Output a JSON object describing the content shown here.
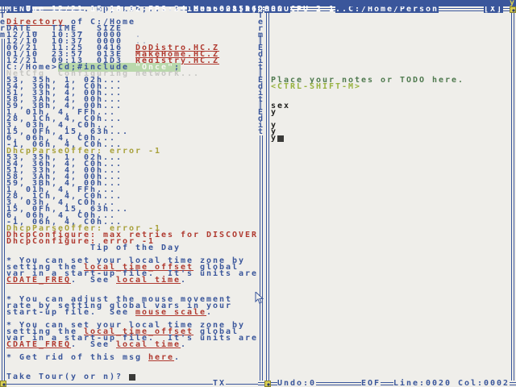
{
  "colors": {
    "accent_blue": "#3a569b",
    "link_red": "#b03a30",
    "error_red": "#b03a30",
    "warn_olive": "#a8a13c",
    "note_green": "#4f7a4f",
    "hint_green": "#97b23f",
    "cmd_highlight": "#b9d8ab",
    "handle_yellow": "#d9cf52"
  },
  "status_bar": {
    "text": "Tue 12/21 15:18:02 FPS:24 Mem:0015D6D800 CPU 2 1",
    "corner_glyph": "y"
  },
  "left_window": {
    "menu_label": "MENU",
    "title": ".Tmp;.Lsh;....T",
    "title_number": "16956628",
    "close_label": "[X]",
    "border_letters": [
      "T",
      "e",
      "r",
      "m"
    ],
    "status": {
      "tx_label": "TX"
    },
    "content_lines": [
      [],
      [
        [
          "lk",
          "Directory"
        ],
        [
          "b",
          " of C:/Home"
        ]
      ],
      [
        [
          "b",
          "DATE_  TIME_  SIZE"
        ]
      ],
      [
        [
          "b",
          "12/10  10:37  0000  "
        ],
        [
          "dim",
          "."
        ]
      ],
      [
        [
          "b",
          "12/10  10:37  0000  "
        ],
        [
          "dim",
          ".."
        ]
      ],
      [
        [
          "b",
          "06/21  11:25  0416  "
        ],
        [
          "lk",
          "DoDistro.HC.Z"
        ]
      ],
      [
        [
          "b",
          "01/10  23:57  013E  "
        ],
        [
          "lk",
          "MakeHome.HC.Z"
        ]
      ],
      [
        [
          "b",
          "12/21  09:13  01D3  "
        ],
        [
          "lk",
          "Registry.HC.Z"
        ]
      ],
      [
        [
          "b",
          "C:/Home>"
        ],
        [
          "cmd",
          "Cd;#include "
        ],
        [
          "str",
          "\"Once\""
        ],
        [
          "cmd",
          ";"
        ]
      ],
      [
        [
          "f",
          "NetCfg  Configuring network..."
        ]
      ],
      [
        [
          "b",
          "53, 35h, 1, 02h..."
        ]
      ],
      [
        [
          "b",
          "54, 36h, 4, C0h..."
        ]
      ],
      [
        [
          "b",
          "51, 33h, 4, 00h..."
        ]
      ],
      [
        [
          "b",
          "58, 3Ah, 4, 00h..."
        ]
      ],
      [
        [
          "b",
          "59, 3Bh, 4, 00h..."
        ]
      ],
      [
        [
          "b",
          "1, 01h, 4, FFh..."
        ]
      ],
      [
        [
          "b",
          "28, 1Ch, 4, C0h..."
        ]
      ],
      [
        [
          "b",
          "3, 03h, 4, C0h..."
        ]
      ],
      [
        [
          "b",
          "15, 0Fh, 15, 63h..."
        ]
      ],
      [
        [
          "b",
          "6, 06h, 4, C0h..."
        ]
      ],
      [
        [
          "b",
          "-1, 06h, 4, C0h..."
        ]
      ],
      [
        [
          "o",
          "DhcpParseOffer: error -1"
        ]
      ],
      [
        [
          "b",
          "53, 35h, 1, 02h..."
        ]
      ],
      [
        [
          "b",
          "54, 36h, 4, C0h..."
        ]
      ],
      [
        [
          "b",
          "51, 33h, 4, 00h..."
        ]
      ],
      [
        [
          "b",
          "58, 3Ah, 4, 00h..."
        ]
      ],
      [
        [
          "b",
          "59, 3Bh, 4, 00h..."
        ]
      ],
      [
        [
          "b",
          "1, 01h, 4, FFh..."
        ]
      ],
      [
        [
          "b",
          "28, 1Ch, 4, C0h..."
        ]
      ],
      [
        [
          "b",
          "3, 03h, 4, C0h..."
        ]
      ],
      [
        [
          "b",
          "15, 0Fh, 15, 63h..."
        ]
      ],
      [
        [
          "b",
          "6, 06h, 4, C0h..."
        ]
      ],
      [
        [
          "b",
          "-1, 06h, 4, C0h..."
        ]
      ],
      [
        [
          "o",
          "DhcpParseOffer: error -1"
        ]
      ],
      [
        [
          "rd",
          "DhcpConfigure: max retries for DISCOVER"
        ]
      ],
      [
        [
          "rd",
          "DhcpConfigure: error -1"
        ]
      ],
      [
        [
          "b",
          "             Tip of the Day"
        ]
      ],
      [],
      [
        [
          "b",
          "* You can set your local time zone by"
        ]
      ],
      [
        [
          "b",
          "setting the "
        ],
        [
          "lk",
          "local_time_offset"
        ],
        [
          "b",
          " global"
        ]
      ],
      [
        [
          "b",
          "var in a start-up file.  It's units are"
        ]
      ],
      [
        [
          "lk",
          "CDATE_FREQ"
        ],
        [
          "b",
          ".  See "
        ],
        [
          "lk",
          "local time"
        ],
        [
          "b",
          "."
        ]
      ],
      [],
      [],
      [
        [
          "b",
          "* You can adjust the mouse movement"
        ]
      ],
      [
        [
          "b",
          "rate by setting global vars in your"
        ]
      ],
      [
        [
          "b",
          "start-up file.  See "
        ],
        [
          "lk",
          "mouse scale"
        ],
        [
          "b",
          "."
        ]
      ],
      [],
      [
        [
          "b",
          "* You can set your local time zone by"
        ]
      ],
      [
        [
          "b",
          "setting the "
        ],
        [
          "lk",
          "local_time_offset"
        ],
        [
          "b",
          " global"
        ]
      ],
      [
        [
          "b",
          "var in a start-up file.  It's units are"
        ]
      ],
      [
        [
          "lk",
          "CDATE_FREQ"
        ],
        [
          "b",
          ".  See "
        ],
        [
          "lk",
          "local time"
        ],
        [
          "b",
          "."
        ]
      ],
      [],
      [
        [
          "b",
          "* Get rid of this msg "
        ],
        [
          "lk",
          "here"
        ],
        [
          "b",
          "."
        ]
      ],
      [],
      [],
      [
        [
          "b",
          "Take Tour(y or n)? "
        ],
        [
          "cur",
          " "
        ]
      ]
    ]
  },
  "right_window": {
    "menu_label": "MENU",
    "title": "..C:/Home/Person",
    "close_label": "[X]",
    "border_letters": [
      "T",
      "e",
      "r",
      "m",
      "║",
      "E",
      "d",
      "i",
      "t",
      "║",
      "E",
      "d",
      "i",
      "t",
      "║",
      "E",
      "d",
      "i",
      "t"
    ],
    "status": {
      "undo": "Undo:0",
      "eof": "EOF",
      "position": "Line:0020 Col:0002"
    },
    "content_lines": [
      [],
      [],
      [],
      [],
      [],
      [],
      [],
      [],
      [],
      [],
      [
        [
          "g",
          "Place your notes or TODO here."
        ]
      ],
      [
        [
          "lg",
          "<CTRL-SHIFT-M>"
        ]
      ],
      [],
      [],
      [
        [
          "k",
          "sex"
        ]
      ],
      [
        [
          "k",
          "y"
        ]
      ],
      [],
      [
        [
          "k",
          "y"
        ]
      ],
      [
        [
          "k",
          "y"
        ]
      ],
      [
        [
          "k",
          "y"
        ],
        [
          "cur",
          " "
        ]
      ]
    ]
  }
}
